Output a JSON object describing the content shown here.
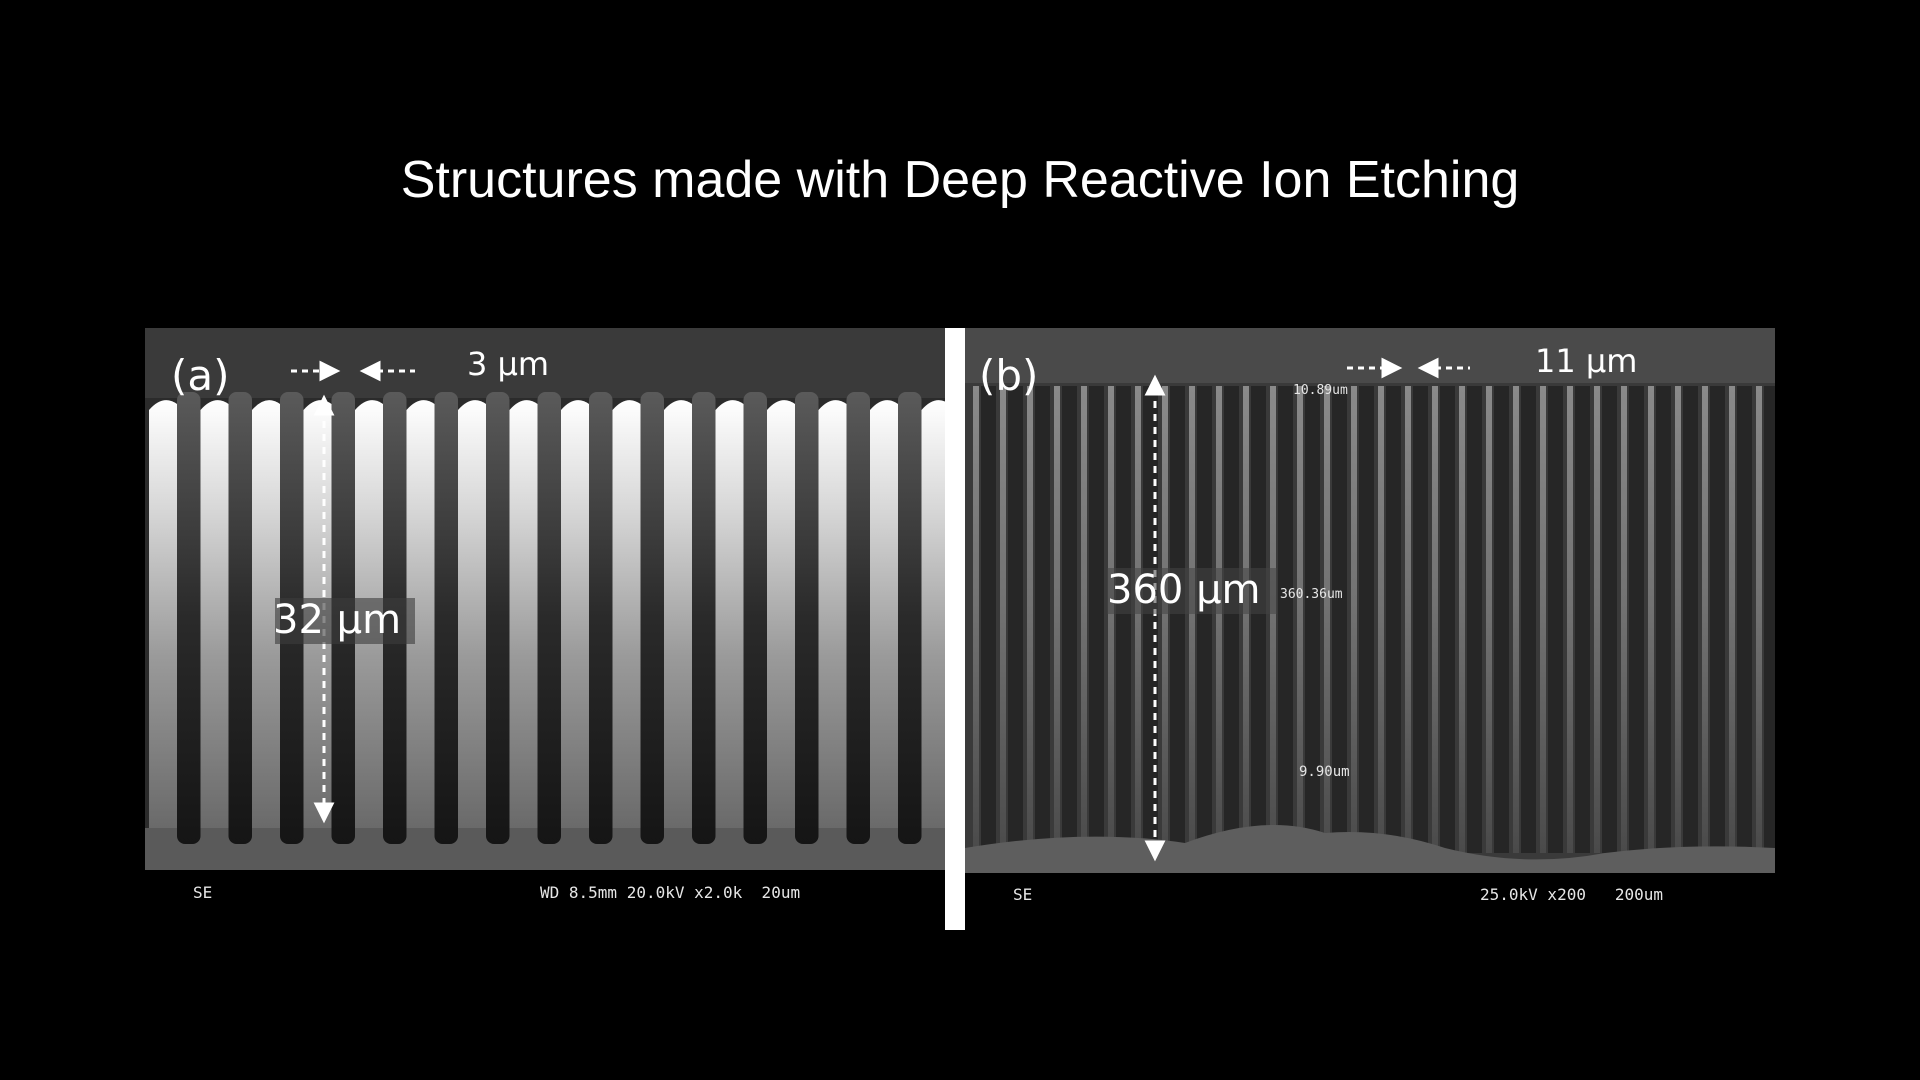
{
  "slide": {
    "title": "Structures made with Deep Reactive Ion Etching"
  },
  "panel_a": {
    "label": "(a)",
    "gap_annotation": "3 µm",
    "depth_annotation": "32 µm",
    "footer_left": "SE",
    "footer_right": "WD 8.5mm 20.0kV x2.0k  20um",
    "fin_count": 16
  },
  "panel_b": {
    "label": "(b)",
    "gap_annotation": "11 µm",
    "depth_annotation": "360 µm",
    "measure_top": "10.89um",
    "measure_depth": "360.36um",
    "measure_bottom": "9.90um",
    "footer_left": "SE",
    "footer_right": "25.0kV x200   200um",
    "trench_count": 30
  },
  "colors": {
    "background": "#000000",
    "text": "#ffffff",
    "divider": "#ffffff"
  }
}
